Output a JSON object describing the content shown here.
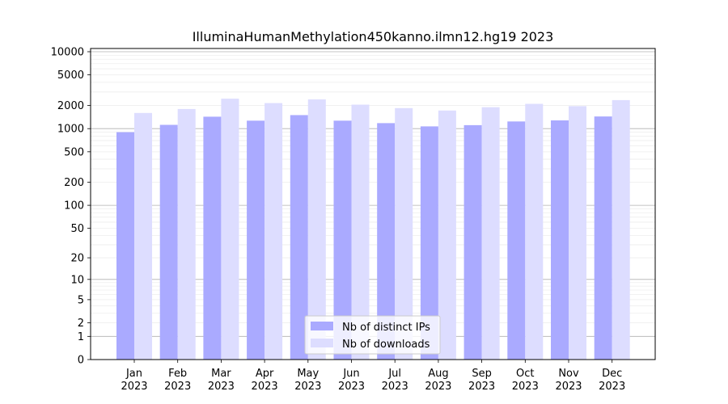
{
  "chart_data": {
    "type": "bar",
    "title": "IlluminaHumanMethylation450kanno.ilmn12.hg19 2023",
    "xlabel": "",
    "ylabel": "",
    "y_scale": "log (0 and 1 shown at bottom)",
    "ylim": [
      0,
      10000
    ],
    "y_ticks": [
      "0",
      "1",
      "2",
      "5",
      "10",
      "20",
      "50",
      "100",
      "200",
      "500",
      "1000",
      "2000",
      "5000",
      "10000"
    ],
    "categories": [
      "Jan\n2023",
      "Feb\n2023",
      "Mar\n2023",
      "Apr\n2023",
      "May\n2023",
      "Jun\n2023",
      "Jul\n2023",
      "Aug\n2023",
      "Sep\n2023",
      "Oct\n2023",
      "Nov\n2023",
      "Dec\n2023"
    ],
    "category_months": [
      "Jan",
      "Feb",
      "Mar",
      "Apr",
      "May",
      "Jun",
      "Jul",
      "Aug",
      "Sep",
      "Oct",
      "Nov",
      "Dec"
    ],
    "category_year": "2023",
    "series": [
      {
        "name": "Nb of distinct IPs",
        "color": "#aaaaff",
        "values": [
          900,
          1120,
          1430,
          1270,
          1500,
          1270,
          1180,
          1070,
          1110,
          1240,
          1280,
          1440
        ]
      },
      {
        "name": "Nb of downloads",
        "color": "#ddddff",
        "values": [
          1600,
          1800,
          2450,
          2150,
          2400,
          2050,
          1850,
          1720,
          1900,
          2100,
          1960,
          2350
        ]
      }
    ],
    "legend": {
      "position": "bottom-center"
    },
    "grid": true
  }
}
